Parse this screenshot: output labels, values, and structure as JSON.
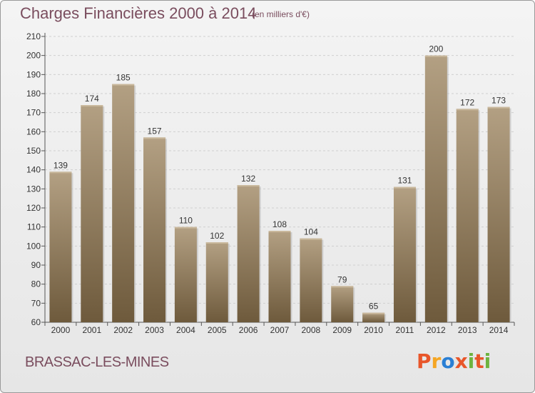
{
  "header": {
    "title": "Charges Financières 2000 à 2014",
    "subtitle": "(en milliers d'€)"
  },
  "footer": {
    "commune": "BRASSAC-LES-MINES",
    "logo_text": "Proxiti",
    "logo_colors": [
      "#e8562a",
      "#f5a623",
      "#2a7fd4",
      "#e8562a",
      "#6db33f",
      "#e8562a",
      "#6db33f"
    ]
  },
  "colors": {
    "bar_top": "#b3a083",
    "bar_bottom": "#6e5a3c",
    "grid": "#cfcfcf",
    "text": "#7a4d5e"
  },
  "chart_data": {
    "type": "bar",
    "categories": [
      "2000",
      "2001",
      "2002",
      "2003",
      "2004",
      "2005",
      "2006",
      "2007",
      "2008",
      "2009",
      "2010",
      "2011",
      "2012",
      "2013",
      "2014"
    ],
    "values": [
      139,
      174,
      185,
      157,
      110,
      102,
      132,
      108,
      104,
      79,
      65,
      131,
      200,
      172,
      173
    ],
    "title": "Charges Financières 2000 à 2014",
    "subtitle": "(en milliers d'€)",
    "xlabel": "",
    "ylabel": "",
    "ylim": [
      60,
      210
    ],
    "yticks": [
      60,
      70,
      80,
      90,
      100,
      110,
      120,
      130,
      140,
      150,
      160,
      170,
      180,
      190,
      200,
      210
    ],
    "grid": true,
    "legend": "none"
  }
}
